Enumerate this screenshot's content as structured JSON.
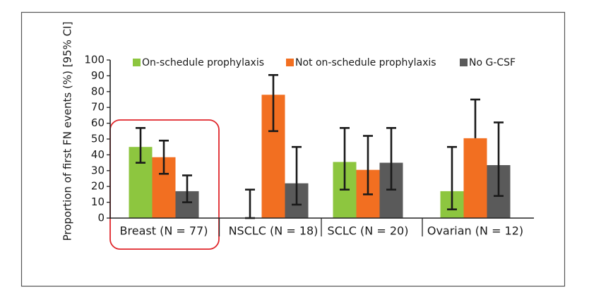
{
  "chart_data": {
    "type": "bar",
    "title": "",
    "xlabel": "",
    "ylabel": "Proportion of first FN events (%) [95% CI]",
    "ylim": [
      0,
      100
    ],
    "yticks": [
      0,
      10,
      20,
      30,
      40,
      50,
      60,
      70,
      80,
      90,
      100
    ],
    "categories": [
      "Breast (N = 77)",
      "NSCLC (N = 18)",
      "SCLC (N = 20)",
      "Ovarian (N = 12)"
    ],
    "highlighted_category": "Breast (N = 77)",
    "highlight_color": "#e0262b",
    "legend_position": "top",
    "grid": false,
    "series": [
      {
        "name": "On-schedule prophylaxis",
        "color": "#8dc63f",
        "values": [
          45,
          0,
          35.5,
          17
        ],
        "ci_low": [
          35,
          0,
          18,
          5.5
        ],
        "ci_high": [
          57,
          18,
          57,
          45
        ]
      },
      {
        "name": "Not on-schedule prophylaxis",
        "color": "#f26f21",
        "values": [
          38.5,
          78,
          30.5,
          50.5
        ],
        "ci_low": [
          28,
          55,
          15,
          null
        ],
        "ci_high": [
          49,
          90.5,
          52,
          75
        ]
      },
      {
        "name": "No G-CSF",
        "color": "#5a5a5a",
        "values": [
          17,
          22,
          35,
          33.5
        ],
        "ci_low": [
          10,
          8.5,
          18,
          14
        ],
        "ci_high": [
          27,
          45,
          57,
          60.5
        ]
      }
    ]
  }
}
